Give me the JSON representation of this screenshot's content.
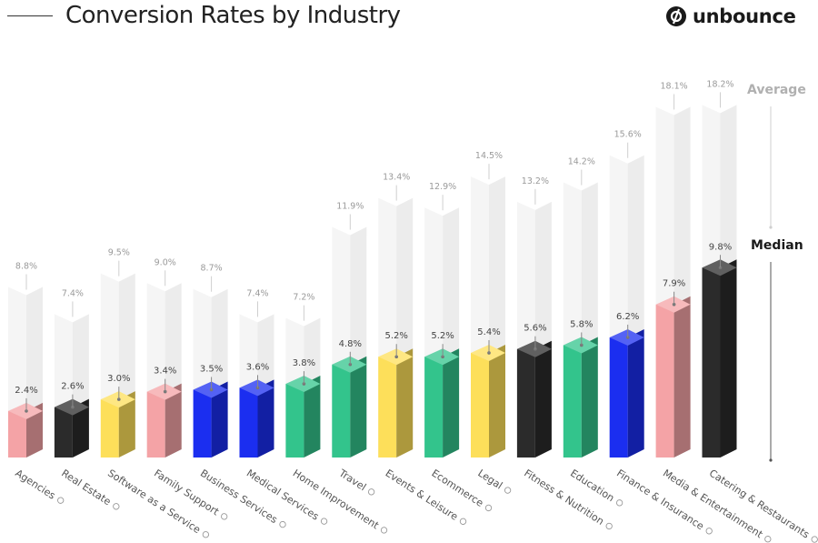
{
  "header": {
    "title": "Conversion Rates by Industry",
    "brand": "unbounce"
  },
  "legend": {
    "average_label": "Average",
    "median_label": "Median"
  },
  "colors": {
    "pink": "#f4a3a6",
    "black": "#2b2b2b",
    "yellow": "#fddf5a",
    "blue": "#1b2ef0",
    "green": "#33c48c",
    "average_bar": "#f2f2f2"
  },
  "chart_data": {
    "type": "bar",
    "title": "Conversion Rates by Industry",
    "categories": [
      "Agencies",
      "Real Estate",
      "Software as a Service",
      "Family Support",
      "Business Services",
      "Medical Services",
      "Home Improvement",
      "Travel",
      "Events & Leisure",
      "Ecommerce",
      "Legal",
      "Fitness & Nutrition",
      "Education",
      "Finance & Insurance",
      "Media & Entertainment",
      "Catering & Restaurants"
    ],
    "category_icons": [
      "megaphone-icon",
      "house-icon",
      "gear-icon",
      "hands-icon",
      "briefcase-icon",
      "pill-icon",
      "toolbox-icon",
      "plane-icon",
      "ticket-icon",
      "cart-icon",
      "gavel-icon",
      "dumbbell-icon",
      "book-icon",
      "coin-icon",
      "play-icon",
      "chef-hat-icon"
    ],
    "series": [
      {
        "name": "Median",
        "values": [
          2.4,
          2.6,
          3.0,
          3.4,
          3.5,
          3.6,
          3.8,
          4.8,
          5.2,
          5.2,
          5.4,
          5.6,
          5.8,
          6.2,
          7.9,
          9.8
        ],
        "labels": [
          "2.4%",
          "2.6%",
          "3.0%",
          "3.4%",
          "3.5%",
          "3.6%",
          "3.8%",
          "4.8%",
          "5.2%",
          "5.2%",
          "5.4%",
          "5.6%",
          "5.8%",
          "6.2%",
          "7.9%",
          "9.8%"
        ]
      },
      {
        "name": "Average",
        "values": [
          8.8,
          7.4,
          9.5,
          9.0,
          8.7,
          7.4,
          7.2,
          11.9,
          13.4,
          12.9,
          14.5,
          13.2,
          14.2,
          15.6,
          18.1,
          18.2
        ],
        "labels": [
          "8.8%",
          "7.4%",
          "9.5%",
          "9.0%",
          "8.7%",
          "7.4%",
          "7.2%",
          "11.9%",
          "13.4%",
          "12.9%",
          "14.5%",
          "13.2%",
          "14.2%",
          "15.6%",
          "18.1%",
          "18.2%"
        ]
      }
    ],
    "bar_colors": [
      "pink",
      "black",
      "yellow",
      "pink",
      "blue",
      "blue",
      "green",
      "green",
      "yellow",
      "green",
      "yellow",
      "black",
      "green",
      "blue",
      "pink",
      "black"
    ],
    "legend_position": "right",
    "grid": false
  }
}
